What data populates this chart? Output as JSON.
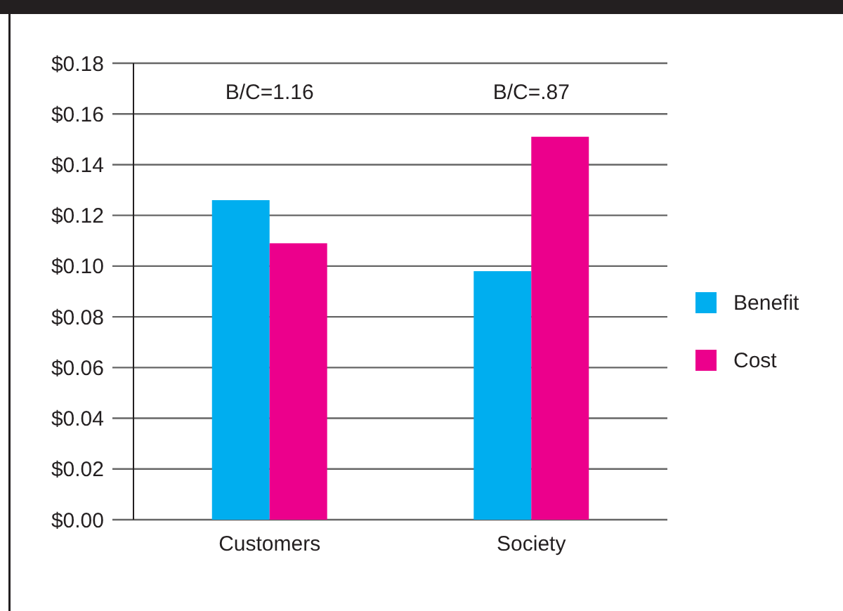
{
  "chart_data": {
    "type": "bar",
    "categories": [
      "Customers",
      "Society"
    ],
    "series": [
      {
        "name": "Benefit",
        "color": "#00aeef",
        "values": [
          0.126,
          0.098
        ]
      },
      {
        "name": "Cost",
        "color": "#ec008c",
        "values": [
          0.109,
          0.151
        ]
      }
    ],
    "ylim": [
      0,
      0.18
    ],
    "yticks": [
      {
        "value": 0,
        "label": "$0.00"
      },
      {
        "value": 0.02,
        "label": "$0.02"
      },
      {
        "value": 0.04,
        "label": "$0.04"
      },
      {
        "value": 0.06,
        "label": "$0.06"
      },
      {
        "value": 0.08,
        "label": "$0.08"
      },
      {
        "value": 0.1,
        "label": "$0.10"
      },
      {
        "value": 0.12,
        "label": "$0.12"
      },
      {
        "value": 0.14,
        "label": "$0.14"
      },
      {
        "value": 0.16,
        "label": "$0.16"
      },
      {
        "value": 0.18,
        "label": "$0.18"
      }
    ],
    "grid": "y",
    "legend": "right",
    "annotations": [
      "B/C=1.16",
      "B/C=.87"
    ]
  }
}
